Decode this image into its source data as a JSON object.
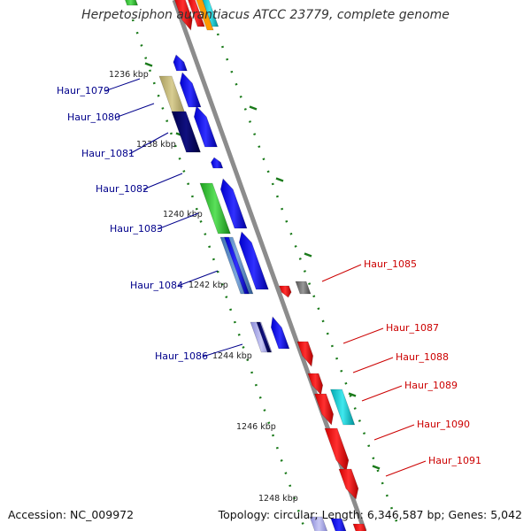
{
  "title": "Herpetosiphon aurantiacus ATCC 23779, complete genome",
  "accession_text": "Accession: NC_009972",
  "topology_text": "Topology: circular; Length: 6,346,587 bp; Genes: 5,042",
  "colors": {
    "backbone": "#8c8c8c",
    "left_labels": "#00008b",
    "right_labels": "#cc0000",
    "tick_marks": "#1a7a1a",
    "scale_text": "#222222"
  },
  "scale_labels": [
    "1236 kbp",
    "1238 kbp",
    "1240 kbp",
    "1242 kbp",
    "1244 kbp",
    "1246 kbp",
    "1248 kbp"
  ],
  "left_genes": [
    "Haur_1079",
    "Haur_1080",
    "Haur_1081",
    "Haur_1082",
    "Haur_1083",
    "Haur_1084",
    "Haur_1086"
  ],
  "right_genes": [
    "Haur_1085",
    "Haur_1087",
    "Haur_1088",
    "Haur_1089",
    "Haur_1090",
    "Haur_1091"
  ]
}
